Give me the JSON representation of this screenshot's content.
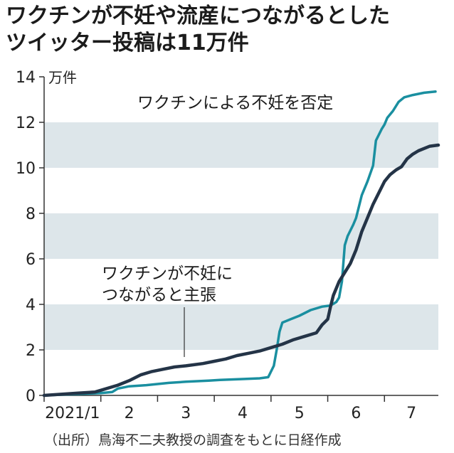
{
  "title_lines": [
    "ワクチンが不妊や流産につながるとした",
    "ツイッター投稿は11万件"
  ],
  "source": "（出所）鳥海不二夫教授の調査をもとに日経作成",
  "colors": {
    "denial": "#1a8fa0",
    "claim": "#243447",
    "band": "#dde6ea",
    "axis": "#333333"
  },
  "chart_data": {
    "type": "line",
    "unit": "万件",
    "ylim": [
      0,
      14
    ],
    "yticks": [
      0,
      2,
      4,
      6,
      8,
      10,
      12,
      14
    ],
    "shaded_bands": [
      [
        2,
        4
      ],
      [
        6,
        8
      ],
      [
        10,
        12
      ]
    ],
    "xlim": [
      0,
      6.95
    ],
    "month_labels": [
      "2021/1",
      "2",
      "3",
      "4",
      "5",
      "6",
      "7"
    ],
    "series": [
      {
        "name": "ワクチンによる不妊を否定",
        "color": "#1a8fa0",
        "points": [
          [
            0,
            0
          ],
          [
            0.5,
            0.05
          ],
          [
            1.0,
            0.1
          ],
          [
            1.2,
            0.15
          ],
          [
            1.3,
            0.3
          ],
          [
            1.4,
            0.35
          ],
          [
            1.5,
            0.4
          ],
          [
            1.8,
            0.45
          ],
          [
            2.0,
            0.5
          ],
          [
            2.2,
            0.55
          ],
          [
            2.5,
            0.6
          ],
          [
            2.9,
            0.65
          ],
          [
            3.1,
            0.68
          ],
          [
            3.5,
            0.72
          ],
          [
            3.8,
            0.75
          ],
          [
            3.95,
            0.8
          ],
          [
            4.05,
            1.3
          ],
          [
            4.1,
            2.0
          ],
          [
            4.15,
            2.8
          ],
          [
            4.2,
            3.2
          ],
          [
            4.35,
            3.35
          ],
          [
            4.5,
            3.5
          ],
          [
            4.7,
            3.75
          ],
          [
            4.9,
            3.9
          ],
          [
            5.05,
            3.95
          ],
          [
            5.15,
            4.1
          ],
          [
            5.2,
            4.3
          ],
          [
            5.25,
            5.0
          ],
          [
            5.3,
            6.6
          ],
          [
            5.35,
            7.0
          ],
          [
            5.45,
            7.5
          ],
          [
            5.5,
            7.8
          ],
          [
            5.55,
            8.3
          ],
          [
            5.6,
            8.8
          ],
          [
            5.7,
            9.4
          ],
          [
            5.8,
            10.1
          ],
          [
            5.85,
            11.2
          ],
          [
            5.95,
            11.7
          ],
          [
            6.0,
            11.9
          ],
          [
            6.05,
            12.2
          ],
          [
            6.15,
            12.5
          ],
          [
            6.25,
            12.9
          ],
          [
            6.35,
            13.1
          ],
          [
            6.5,
            13.2
          ],
          [
            6.7,
            13.3
          ],
          [
            6.9,
            13.35
          ]
        ]
      },
      {
        "name": "ワクチンが不妊につながると主張",
        "color": "#243447",
        "points": [
          [
            0,
            0
          ],
          [
            0.3,
            0.05
          ],
          [
            0.6,
            0.1
          ],
          [
            0.9,
            0.15
          ],
          [
            1.1,
            0.3
          ],
          [
            1.3,
            0.45
          ],
          [
            1.5,
            0.65
          ],
          [
            1.7,
            0.9
          ],
          [
            1.9,
            1.05
          ],
          [
            2.1,
            1.15
          ],
          [
            2.3,
            1.25
          ],
          [
            2.5,
            1.3
          ],
          [
            2.8,
            1.4
          ],
          [
            3.0,
            1.5
          ],
          [
            3.2,
            1.6
          ],
          [
            3.4,
            1.75
          ],
          [
            3.6,
            1.85
          ],
          [
            3.8,
            1.95
          ],
          [
            4.0,
            2.1
          ],
          [
            4.2,
            2.25
          ],
          [
            4.4,
            2.45
          ],
          [
            4.6,
            2.6
          ],
          [
            4.8,
            2.75
          ],
          [
            4.9,
            3.1
          ],
          [
            5.0,
            3.35
          ],
          [
            5.05,
            3.9
          ],
          [
            5.1,
            4.4
          ],
          [
            5.2,
            5.0
          ],
          [
            5.3,
            5.4
          ],
          [
            5.4,
            5.8
          ],
          [
            5.5,
            6.4
          ],
          [
            5.6,
            7.2
          ],
          [
            5.7,
            7.8
          ],
          [
            5.8,
            8.4
          ],
          [
            5.9,
            8.9
          ],
          [
            6.0,
            9.4
          ],
          [
            6.1,
            9.7
          ],
          [
            6.2,
            9.9
          ],
          [
            6.3,
            10.05
          ],
          [
            6.4,
            10.4
          ],
          [
            6.5,
            10.6
          ],
          [
            6.6,
            10.75
          ],
          [
            6.8,
            10.95
          ],
          [
            6.95,
            11.0
          ]
        ]
      }
    ],
    "annotations": [
      {
        "text": "ワクチンによる不妊を否定",
        "series": 0
      },
      {
        "lines": [
          "ワクチンが不妊に",
          "つながると主張"
        ],
        "series": 1
      }
    ]
  }
}
